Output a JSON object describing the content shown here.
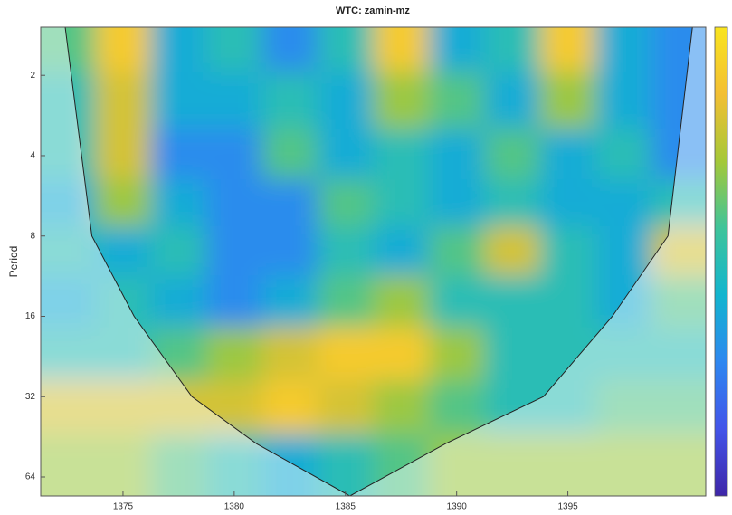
{
  "chart_data": {
    "type": "heatmap",
    "title": "WTC: zamin-mz",
    "ylabel": "Period",
    "x": [
      1372.5,
      1375,
      1377.5,
      1380,
      1382.5,
      1385,
      1387.5,
      1390,
      1392.5,
      1395,
      1397.5,
      1400
    ],
    "periods": [
      1.5,
      2.5,
      4,
      6,
      9,
      14,
      22,
      35,
      55
    ],
    "z": [
      [
        0.6,
        0.9,
        0.4,
        0.5,
        0.3,
        0.5,
        0.9,
        0.4,
        0.5,
        0.9,
        0.4,
        0.3
      ],
      [
        0.5,
        0.8,
        0.4,
        0.4,
        0.5,
        0.4,
        0.7,
        0.6,
        0.4,
        0.7,
        0.4,
        0.3
      ],
      [
        0.5,
        0.8,
        0.3,
        0.3,
        0.6,
        0.4,
        0.5,
        0.4,
        0.6,
        0.4,
        0.5,
        0.3
      ],
      [
        0.4,
        0.7,
        0.4,
        0.3,
        0.3,
        0.6,
        0.5,
        0.4,
        0.5,
        0.4,
        0.4,
        0.5
      ],
      [
        0.5,
        0.4,
        0.5,
        0.3,
        0.3,
        0.5,
        0.4,
        0.6,
        0.8,
        0.5,
        0.4,
        0.8
      ],
      [
        0.4,
        0.5,
        0.4,
        0.3,
        0.4,
        0.6,
        0.7,
        0.5,
        0.5,
        0.5,
        0.4,
        0.6
      ],
      [
        0.5,
        0.5,
        0.6,
        0.7,
        0.8,
        0.9,
        0.9,
        0.7,
        0.5,
        0.5,
        0.5,
        0.5
      ],
      [
        0.8,
        0.8,
        0.8,
        0.8,
        0.9,
        0.8,
        0.7,
        0.6,
        0.5,
        0.5,
        0.6,
        0.6
      ],
      [
        0.7,
        0.7,
        0.6,
        0.5,
        0.4,
        0.5,
        0.6,
        0.7,
        0.7,
        0.7,
        0.7,
        0.7
      ]
    ],
    "zlim": [
      0,
      1
    ],
    "colormap": "parula",
    "coi": {
      "x": [
        1372.4,
        1373.6,
        1375.5,
        1378.1,
        1381,
        1385.2,
        1389.5,
        1393.9,
        1397,
        1399.5,
        1400.6
      ],
      "period": [
        1.32,
        8,
        16,
        32,
        48,
        75.4,
        48,
        32,
        16,
        8,
        1.32
      ]
    },
    "xlim": [
      1371.3,
      1401.2
    ],
    "xticks": [
      1375,
      1380,
      1385,
      1390,
      1395
    ],
    "ylim": [
      1.32,
      75.4
    ],
    "yticks": [
      2,
      4,
      8,
      16,
      32,
      64
    ],
    "yscale": "log",
    "yreverse": true
  }
}
